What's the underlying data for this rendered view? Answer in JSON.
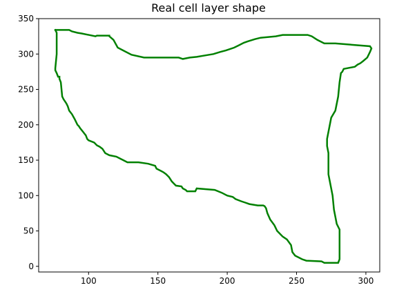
{
  "chart_data": {
    "type": "line",
    "title": "Real cell layer shape",
    "xlabel": "",
    "ylabel": "",
    "xlim": [
      64,
      310
    ],
    "ylim": [
      -8,
      350
    ],
    "x_ticks": [
      100,
      150,
      200,
      250,
      300
    ],
    "y_ticks": [
      0,
      50,
      100,
      150,
      200,
      250,
      300,
      350
    ],
    "grid": false,
    "legend": null,
    "series": [
      {
        "color": "#008000",
        "x": [
          76,
          86,
          88,
          92,
          95,
          105,
          106,
          115,
          115,
          118,
          121,
          125,
          131,
          140,
          145,
          165,
          168,
          173,
          178,
          184,
          190,
          195,
          199,
          205,
          208,
          212,
          215,
          220,
          224,
          235,
          240,
          245,
          248,
          258,
          261,
          265,
          270,
          278,
          303,
          304,
          303,
          302,
          301,
          298,
          296,
          294,
          292,
          284,
          283,
          282,
          281,
          280,
          278,
          275,
          274,
          273,
          272,
          272,
          273,
          273,
          273,
          275,
          276,
          277,
          278,
          279,
          281,
          281,
          280,
          279,
          278,
          270,
          268,
          257,
          254,
          249,
          247,
          246,
          243,
          240,
          238,
          236,
          234,
          231,
          229,
          228,
          227,
          226,
          222,
          216,
          213,
          210,
          206,
          204,
          200,
          196,
          191,
          178,
          177,
          171,
          170,
          168,
          167,
          163,
          160,
          158,
          156,
          154,
          152,
          149,
          148,
          143,
          136,
          132,
          128,
          125,
          123,
          120,
          115,
          112,
          110,
          108,
          106,
          104,
          100,
          99,
          98,
          96,
          94,
          93,
          92,
          90,
          88,
          86,
          85,
          84,
          83,
          82,
          81,
          80,
          79,
          79,
          78,
          77,
          76,
          76,
          77,
          77,
          76
        ],
        "y": [
          334,
          334,
          332,
          330,
          329,
          325,
          326,
          326,
          325,
          320,
          309,
          305,
          299,
          295,
          295,
          295,
          293,
          295,
          296,
          298,
          300,
          303,
          305,
          309,
          312,
          316,
          318,
          321,
          323,
          325,
          327,
          327,
          327,
          327,
          325,
          320,
          315,
          315,
          311,
          308,
          303,
          299,
          295,
          290,
          287,
          285,
          282,
          279,
          275,
          273,
          260,
          240,
          220,
          210,
          200,
          190,
          180,
          170,
          160,
          140,
          130,
          110,
          100,
          80,
          70,
          60,
          52,
          10,
          5,
          5,
          5,
          5,
          7,
          8,
          10,
          15,
          20,
          30,
          38,
          42,
          46,
          50,
          58,
          66,
          75,
          82,
          85,
          86,
          86,
          88,
          90,
          92,
          95,
          98,
          100,
          104,
          108,
          110,
          106,
          106,
          108,
          110,
          113,
          114,
          120,
          126,
          130,
          133,
          135,
          138,
          142,
          145,
          147,
          147,
          147,
          150,
          152,
          155,
          157,
          160,
          166,
          169,
          171,
          175,
          178,
          180,
          185,
          190,
          195,
          198,
          200,
          208,
          215,
          220,
          226,
          230,
          233,
          236,
          240,
          260,
          265,
          268,
          268,
          273,
          277,
          280,
          300,
          330,
          334
        ]
      }
    ]
  }
}
